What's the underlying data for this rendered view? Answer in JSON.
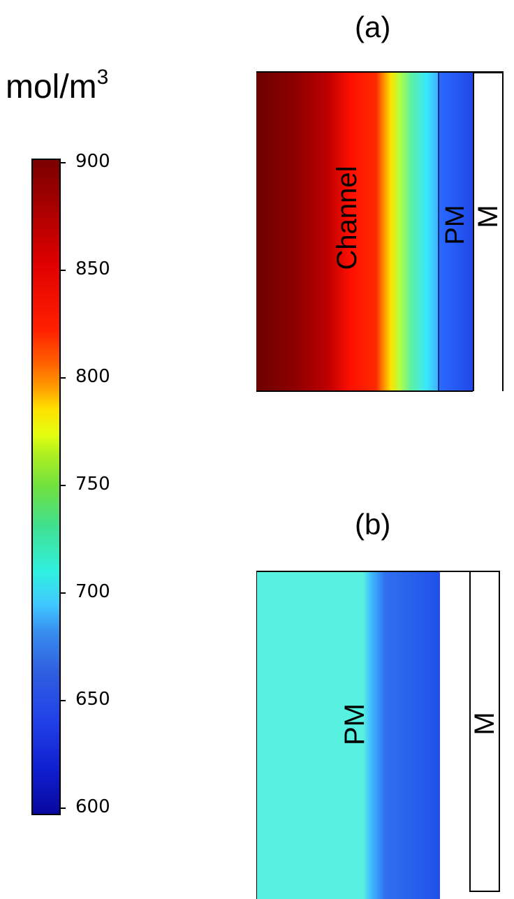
{
  "colorbar": {
    "unit_base": "mol/m",
    "unit_exponent": "3",
    "ticks": [
      "900",
      "850",
      "800",
      "750",
      "700",
      "650",
      "600"
    ]
  },
  "panel_a": {
    "title": "(a)",
    "regions": {
      "channel": "Channel",
      "pm": "PM",
      "m": "M"
    }
  },
  "panel_b": {
    "title": "(b)",
    "regions": {
      "pm": "PM",
      "m": "M"
    }
  }
}
